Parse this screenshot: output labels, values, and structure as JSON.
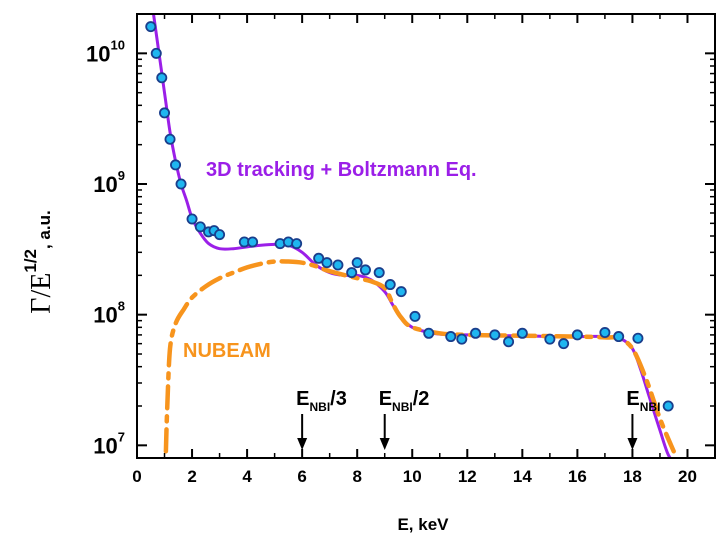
{
  "chart_data": {
    "type": "line",
    "title": "",
    "xlabel": "E, keV",
    "ylabel_main": "Γ/E",
    "ylabel_sup": "1/2",
    "ylabel_tail": ", a.u.",
    "xlim": [
      0,
      21
    ],
    "ylim": [
      8000000,
      20000000000
    ],
    "y_scale": "log",
    "x_ticks": [
      "0",
      "2",
      "4",
      "6",
      "8",
      "10",
      "12",
      "14",
      "16",
      "18",
      "20"
    ],
    "y_ticks": [
      {
        "value": 10000000,
        "base": "10",
        "exp": "7"
      },
      {
        "value": 100000000,
        "base": "10",
        "exp": "8"
      },
      {
        "value": 1000000000,
        "base": "10",
        "exp": "9"
      },
      {
        "value": 10000000000,
        "base": "10",
        "exp": "10"
      }
    ],
    "colors": {
      "tracking": "#9b1fe8",
      "nubeam": "#f7941d",
      "points_fill": "#1fb6f0",
      "points_edge": "#1a3e8c"
    },
    "annotations": [
      {
        "label": "3D tracking + Boltzmann Eq.",
        "color": "#9b1fe8"
      },
      {
        "label": "NUBEAM",
        "color": "#f7941d"
      }
    ],
    "beam_markers": [
      {
        "x": 6,
        "base": "E",
        "sub": "NBI",
        "tail": "/3"
      },
      {
        "x": 9,
        "base": "E",
        "sub": "NBI",
        "tail": "/2"
      },
      {
        "x": 18,
        "base": "E",
        "sub": "NBI",
        "tail": ""
      }
    ],
    "series": [
      {
        "name": "3D tracking + Boltzmann Eq.",
        "style": "solid",
        "x": [
          0.6,
          0.8,
          1.0,
          1.2,
          1.4,
          1.6,
          1.8,
          2.0,
          2.3,
          2.6,
          3.0,
          3.5,
          4.0,
          4.5,
          5.0,
          5.5,
          6.0,
          6.5,
          7.0,
          7.5,
          8.0,
          8.5,
          9.0,
          9.3,
          9.6,
          10.0,
          10.5,
          11.0,
          12.0,
          13.0,
          14.0,
          15.0,
          16.0,
          17.0,
          17.6,
          18.0,
          18.3,
          18.6,
          19.0,
          19.3,
          19.6
        ],
        "y": [
          20000000000,
          10000000000,
          5000000000,
          2500000000,
          1500000000,
          1000000000,
          750000000,
          550000000,
          420000000,
          350000000,
          320000000,
          320000000,
          330000000,
          340000000,
          345000000,
          340000000,
          300000000,
          240000000,
          210000000,
          200000000,
          200000000,
          185000000,
          150000000,
          118000000,
          95000000,
          80000000,
          74000000,
          71000000,
          70000000,
          69000000,
          69000000,
          68000000,
          68000000,
          68000000,
          65000000,
          55000000,
          38000000,
          24000000,
          13000000,
          8500000,
          7000000
        ]
      },
      {
        "name": "NUBEAM",
        "style": "dashdot",
        "x": [
          1.05,
          1.1,
          1.2,
          1.4,
          1.7,
          2.0,
          2.5,
          3.0,
          3.5,
          4.0,
          4.5,
          5.0,
          5.5,
          6.0,
          6.5,
          7.0,
          8.0,
          8.5,
          9.0,
          9.3,
          9.6,
          10.0,
          11.0,
          12.0,
          14.0,
          16.0,
          17.0,
          17.5,
          18.0,
          18.5,
          19.0,
          19.5
        ],
        "y": [
          9000000,
          20000000,
          55000000,
          85000000,
          110000000,
          135000000,
          165000000,
          190000000,
          210000000,
          230000000,
          245000000,
          255000000,
          255000000,
          250000000,
          235000000,
          215000000,
          190000000,
          180000000,
          160000000,
          120000000,
          95000000,
          80000000,
          72000000,
          70000000,
          69000000,
          68000000,
          67000000,
          66000000,
          55000000,
          32000000,
          16000000,
          9000000
        ]
      },
      {
        "name": "points",
        "style": "markers",
        "x": [
          0.5,
          0.7,
          0.9,
          1.0,
          1.2,
          1.4,
          1.6,
          2.0,
          2.3,
          2.6,
          2.8,
          3.0,
          3.9,
          4.2,
          5.2,
          5.5,
          5.8,
          6.6,
          6.9,
          7.3,
          7.8,
          8.0,
          8.3,
          8.8,
          9.2,
          9.6,
          10.1,
          10.6,
          11.4,
          11.8,
          12.3,
          13.0,
          13.5,
          14.0,
          15.0,
          15.5,
          16.0,
          17.0,
          17.5,
          18.2,
          19.3
        ],
        "y": [
          16000000000,
          10000000000,
          6500000000,
          3500000000,
          2200000000,
          1400000000,
          1000000000,
          540000000,
          470000000,
          430000000,
          440000000,
          410000000,
          360000000,
          360000000,
          350000000,
          360000000,
          350000000,
          270000000,
          250000000,
          240000000,
          210000000,
          250000000,
          220000000,
          210000000,
          170000000,
          150000000,
          97000000,
          72000000,
          68000000,
          65000000,
          72000000,
          70000000,
          62000000,
          72000000,
          65000000,
          60000000,
          70000000,
          73000000,
          68000000,
          66000000,
          20000000
        ]
      }
    ]
  }
}
